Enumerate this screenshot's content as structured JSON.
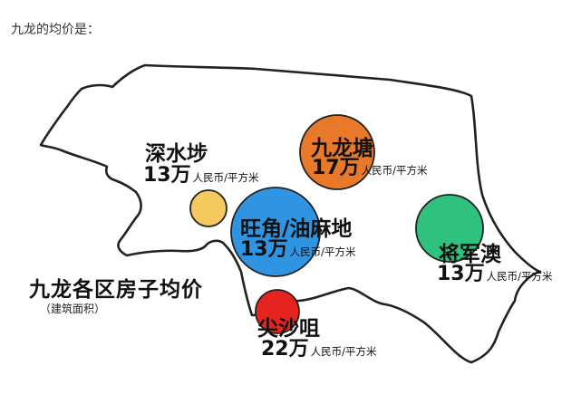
{
  "header": {
    "text": "九龙的均价是："
  },
  "map": {
    "title": "九龙各区房子均价",
    "subtitle": "（建筑面积）"
  },
  "districts": [
    {
      "id": "sham-shui-po",
      "name": "深水埗",
      "price": "13万",
      "unit": "人民币/平方米",
      "color": "#f4c95d"
    },
    {
      "id": "kowloon-tong",
      "name": "九龙塘",
      "price": "17万",
      "unit": "人民币/平方米",
      "color": "#e8782a"
    },
    {
      "id": "mong-kok",
      "name": "旺角/油麻地",
      "price": "13万",
      "unit": "人民币/平方米",
      "color": "#2f95e3"
    },
    {
      "id": "tseung-kwan-o",
      "name": "将军澳",
      "price": "13万",
      "unit": "人民币/平方米",
      "color": "#2ec27e"
    },
    {
      "id": "tsim-sha-tsui",
      "name": "尖沙咀",
      "price": "22万",
      "unit": "人民币/平方米",
      "color": "#e52420"
    }
  ]
}
